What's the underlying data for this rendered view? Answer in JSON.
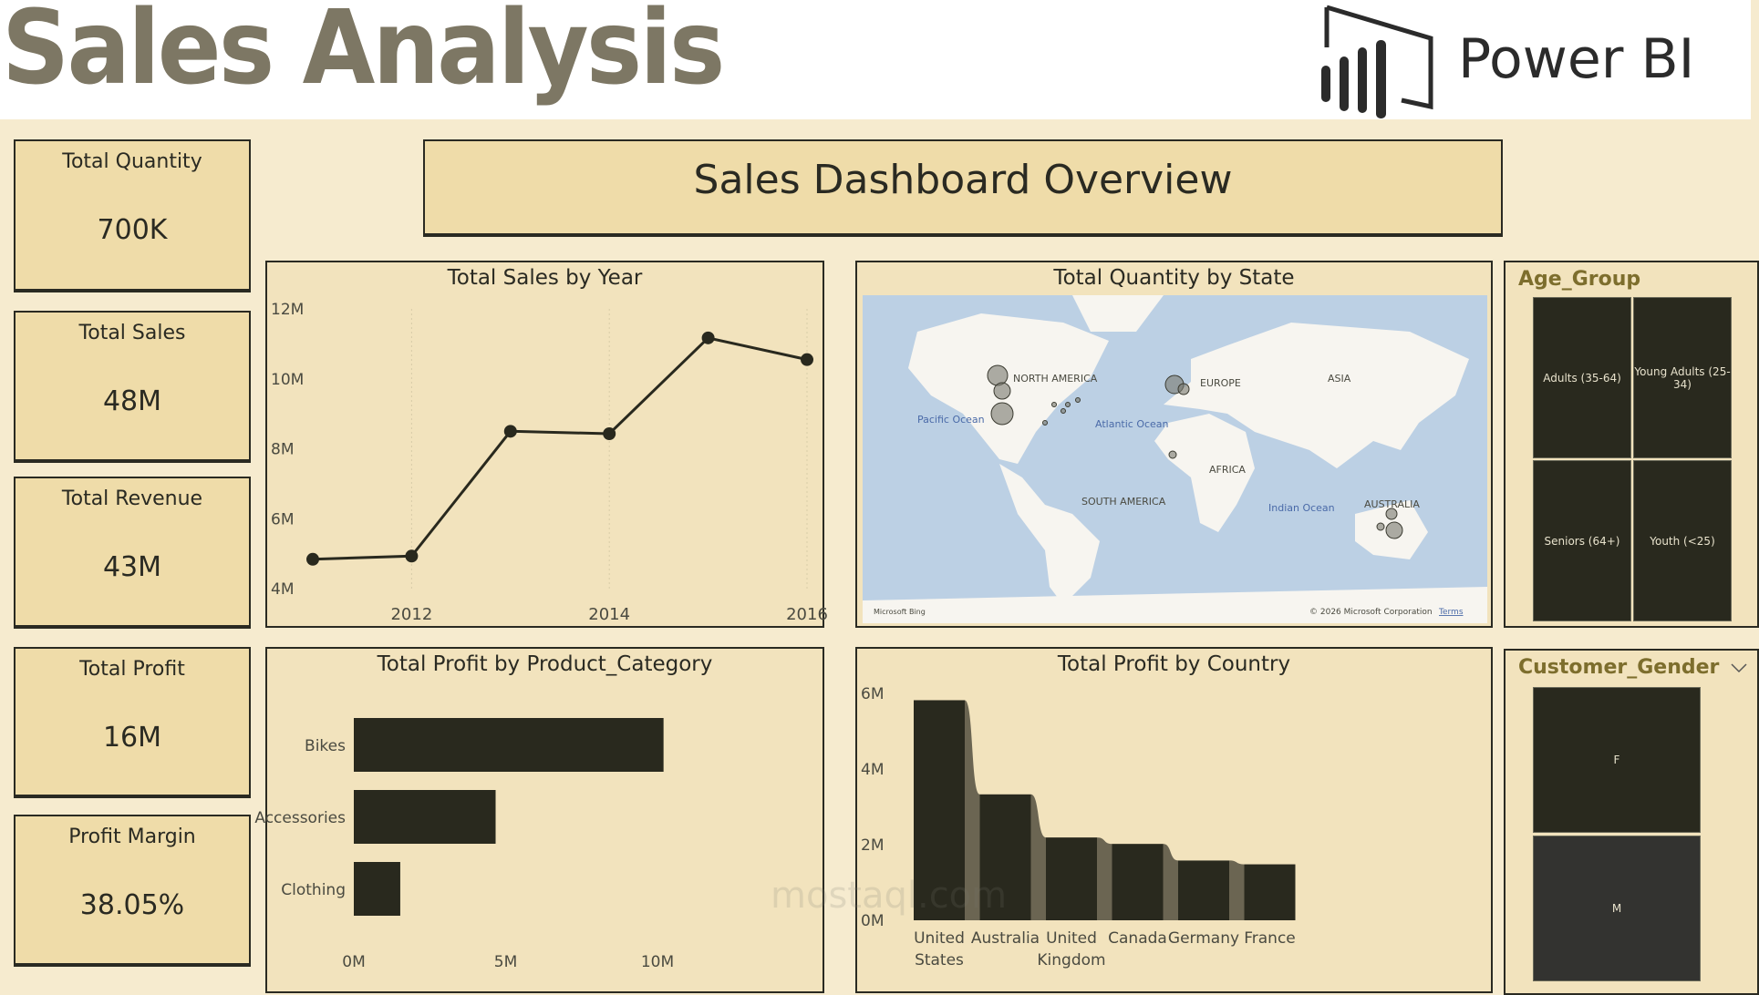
{
  "header": {
    "title": "Sales Analysis",
    "logo_text": "Power BI"
  },
  "banner": {
    "title": "Sales Dashboard Overview"
  },
  "kpis": [
    {
      "label": "Total Quantity",
      "value": "700K"
    },
    {
      "label": "Total Sales",
      "value": "48M"
    },
    {
      "label": "Total Revenue",
      "value": "43M"
    },
    {
      "label": "Total Profit",
      "value": "16M"
    },
    {
      "label": "Profit Margin",
      "value": "38.05%"
    }
  ],
  "colors": {
    "dark": "#29291e",
    "panel": "#f2e3bd",
    "card": "#efdca9",
    "accent": "#7d7764",
    "ribbon": "#6b6552"
  },
  "chart_data": [
    {
      "type": "line",
      "title": "Total Sales by Year",
      "x": [
        2011,
        2012,
        2013,
        2014,
        2015,
        2016
      ],
      "values": [
        4.84,
        4.93,
        8.5,
        8.43,
        11.17,
        10.55
      ],
      "unit": "M",
      "yticks": [
        "4M",
        "6M",
        "8M",
        "10M",
        "12M"
      ],
      "xticks": [
        "2012",
        "2014",
        "2016"
      ],
      "ylim": [
        4,
        12
      ],
      "grid": "vertical-dotted"
    },
    {
      "type": "bar",
      "orientation": "horizontal",
      "title": "Total Profit by Product_Category",
      "categories": [
        "Bikes",
        "Accessories",
        "Clothing"
      ],
      "values": [
        10.2,
        4.67,
        1.53
      ],
      "unit": "M",
      "xticks": [
        "0M",
        "5M",
        "10M"
      ],
      "xlim": [
        0,
        10
      ]
    },
    {
      "type": "bar",
      "subtype": "ribbon",
      "title": "Total Profit by Country",
      "categories": [
        "United States",
        "Australia",
        "United Kingdom",
        "Canada",
        "Germany",
        "France"
      ],
      "values": [
        5.82,
        3.33,
        2.19,
        2.02,
        1.58,
        1.48
      ],
      "unit": "M",
      "yticks": [
        "0M",
        "2M",
        "4M",
        "6M"
      ],
      "ylim": [
        0,
        6
      ]
    }
  ],
  "map": {
    "title": "Total Quantity by State",
    "labels": [
      "NORTH AMERICA",
      "EUROPE",
      "ASIA",
      "AFRICA",
      "SOUTH AMERICA",
      "AUSTRALIA",
      "Pacific Ocean",
      "Atlantic Ocean",
      "Indian Ocean"
    ],
    "attribution": "Microsoft Bing",
    "copyright": "© 2026 Microsoft Corporation",
    "terms": "Terms"
  },
  "age_group": {
    "title": "Age_Group",
    "items": [
      "Adults (35-64)",
      "Young Adults (25-34)",
      "Seniors (64+)",
      "Youth (<25)"
    ]
  },
  "gender": {
    "title": "Customer_Gender",
    "items": [
      "F",
      "M"
    ]
  },
  "watermark": "mostaql.com"
}
